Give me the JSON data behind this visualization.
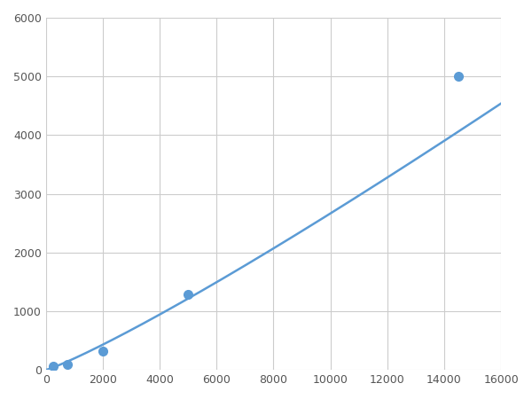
{
  "x_points": [
    250,
    750,
    2000,
    5000,
    14500
  ],
  "y_points": [
    60,
    100,
    320,
    1280,
    5000
  ],
  "xlim": [
    0,
    16000
  ],
  "ylim": [
    0,
    6000
  ],
  "xticks": [
    0,
    2000,
    4000,
    6000,
    8000,
    10000,
    12000,
    14000,
    16000
  ],
  "yticks": [
    0,
    1000,
    2000,
    3000,
    4000,
    5000,
    6000
  ],
  "line_color": "#5b9bd5",
  "marker_color": "#5b9bd5",
  "marker_size": 7,
  "line_width": 1.8,
  "background_color": "#ffffff",
  "grid_color": "#cccccc",
  "figsize": [
    6.0,
    4.5
  ],
  "dpi": 100
}
